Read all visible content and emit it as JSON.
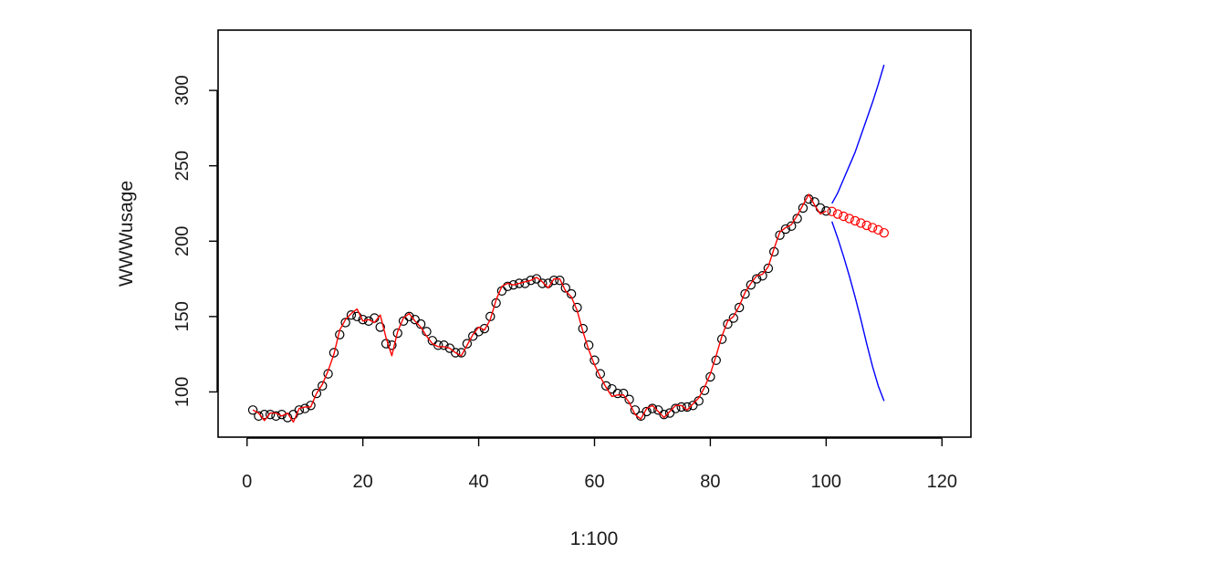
{
  "chart_data": {
    "type": "line",
    "title": "",
    "xlabel": "1:100",
    "ylabel": "WWWusage",
    "xlim": [
      -5,
      125
    ],
    "ylim": [
      70,
      340
    ],
    "x_ticks": [
      0,
      20,
      40,
      60,
      80,
      100,
      120
    ],
    "x_tick_labels": [
      "0",
      "20",
      "40",
      "60",
      "80",
      "100",
      "120"
    ],
    "y_ticks": [
      100,
      150,
      200,
      250,
      300
    ],
    "y_tick_labels": [
      "100",
      "150",
      "200",
      "250",
      "300"
    ],
    "grid": false,
    "legend": "none",
    "colors": {
      "observed": "#000000",
      "fitted": "#ff0000",
      "forecast": "#ff0000",
      "interval": "#0000ff",
      "axis": "#000000"
    },
    "series": [
      {
        "style": "points",
        "x": [
          1,
          2,
          3,
          4,
          5,
          6,
          7,
          8,
          9,
          10,
          11,
          12,
          13,
          14,
          15,
          16,
          17,
          18,
          19,
          20,
          21,
          22,
          23,
          24,
          25,
          26,
          27,
          28,
          29,
          30,
          31,
          32,
          33,
          34,
          35,
          36,
          37,
          38,
          39,
          40,
          41,
          42,
          43,
          44,
          45,
          46,
          47,
          48,
          49,
          50,
          51,
          52,
          53,
          54,
          55,
          56,
          57,
          58,
          59,
          60,
          61,
          62,
          63,
          64,
          65,
          66,
          67,
          68,
          69,
          70,
          71,
          72,
          73,
          74,
          75,
          76,
          77,
          78,
          79,
          80,
          81,
          82,
          83,
          84,
          85,
          86,
          87,
          88,
          89,
          90,
          91,
          92,
          93,
          94,
          95,
          96,
          97,
          98,
          99,
          100
        ],
        "values": [
          88,
          84,
          85,
          85,
          84,
          85,
          83,
          85,
          88,
          89,
          91,
          99,
          104,
          112,
          126,
          138,
          146,
          151,
          150,
          148,
          147,
          149,
          143,
          132,
          131,
          139,
          147,
          150,
          148,
          145,
          140,
          134,
          131,
          131,
          129,
          126,
          126,
          132,
          137,
          140,
          142,
          150,
          159,
          167,
          170,
          171,
          172,
          172,
          174,
          175,
          172,
          172,
          174,
          174,
          169,
          165,
          156,
          142,
          131,
          121,
          112,
          104,
          102,
          99,
          99,
          95,
          88,
          84,
          87,
          89,
          88,
          85,
          86,
          89,
          90,
          90,
          91,
          94,
          101,
          110,
          121,
          135,
          145,
          149,
          156,
          165,
          171,
          175,
          177,
          182,
          193,
          204,
          208,
          210,
          215,
          222,
          228,
          226,
          222,
          220
        ]
      },
      {
        "style": "line",
        "x": [
          1,
          2,
          3,
          4,
          5,
          6,
          7,
          8,
          9,
          10,
          11,
          12,
          13,
          14,
          15,
          16,
          17,
          18,
          19,
          20,
          21,
          22,
          23,
          24,
          25,
          26,
          27,
          28,
          29,
          30,
          31,
          32,
          33,
          34,
          35,
          36,
          37,
          38,
          39,
          40,
          41,
          42,
          43,
          44,
          45,
          46,
          47,
          48,
          49,
          50,
          51,
          52,
          53,
          54,
          55,
          56,
          57,
          58,
          59,
          60,
          61,
          62,
          63,
          64,
          65,
          66,
          67,
          68,
          69,
          70,
          71,
          72,
          73,
          74,
          75,
          76,
          77,
          78,
          79,
          80,
          81,
          82,
          83,
          84,
          85,
          86,
          87,
          88,
          89,
          90,
          91,
          92,
          93,
          94,
          95,
          96,
          97,
          98,
          99,
          100
        ],
        "values": [
          88,
          86,
          81,
          86,
          86,
          84,
          86,
          80,
          89,
          90,
          90,
          99,
          105,
          114,
          125,
          141,
          148,
          152,
          155,
          147,
          148,
          146,
          151,
          136,
          124,
          140,
          149,
          152,
          147,
          143,
          137,
          132,
          130,
          130,
          129,
          126,
          124,
          131,
          138,
          143,
          141,
          148,
          161,
          170,
          172,
          171,
          172,
          173,
          174,
          176,
          173,
          169,
          175,
          175,
          167,
          163,
          154,
          140,
          128,
          118,
          110,
          103,
          97,
          98,
          98,
          93,
          85,
          82,
          89,
          91,
          87,
          83,
          87,
          91,
          91,
          88,
          92,
          96,
          103,
          112,
          124,
          137,
          147,
          150,
          157,
          166,
          172,
          177,
          178,
          183,
          195,
          206,
          209,
          211,
          217,
          224,
          231,
          224,
          218,
          220
        ]
      },
      {
        "style": "points",
        "x": [
          101,
          102,
          103,
          104,
          105,
          106,
          107,
          108,
          109,
          110
        ],
        "values": [
          219.7,
          218.0,
          216.5,
          215.0,
          213.5,
          212.0,
          210.5,
          209.0,
          207.5,
          205.5
        ]
      },
      {
        "style": "line",
        "x": [
          101,
          102,
          103,
          104,
          105,
          106,
          107,
          108,
          109,
          110
        ],
        "values": [
          225,
          232,
          241,
          250,
          259,
          270,
          281,
          292,
          304,
          317
        ]
      },
      {
        "style": "line",
        "x": [
          101,
          102,
          103,
          104,
          105,
          106,
          107,
          108,
          109,
          110
        ],
        "values": [
          213,
          202,
          190,
          177,
          163,
          148,
          132,
          117,
          104,
          94
        ]
      }
    ]
  }
}
